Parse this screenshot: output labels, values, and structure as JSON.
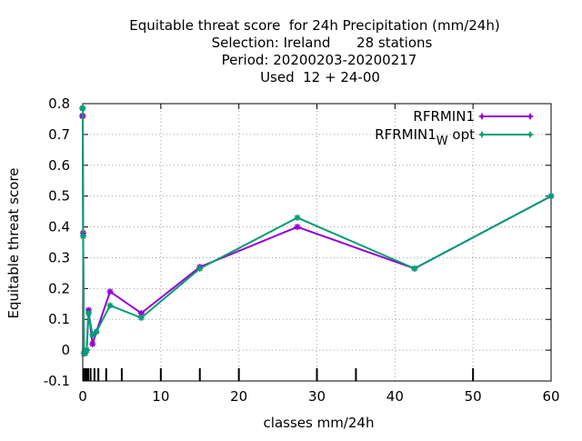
{
  "chart_data": {
    "type": "line",
    "title_lines": [
      "Equitable threat score  for 24h Precipitation (mm/24h)",
      "Selection: Ireland      28 stations",
      "Period: 20200203-20200217",
      "Used  12 + 24-00"
    ],
    "xlabel": "classes mm/24h",
    "ylabel": "Equitable threat score",
    "xlim": [
      0,
      60
    ],
    "ylim": [
      -0.1,
      0.8
    ],
    "xticks": [
      0,
      10,
      20,
      30,
      40,
      50,
      60
    ],
    "yticks": [
      -0.1,
      0,
      0.1,
      0.2,
      0.3,
      0.4,
      0.5,
      0.6,
      0.7,
      0.8
    ],
    "ytick_labels": [
      "-0.1",
      "0",
      "0.1",
      "0.2",
      "0.3",
      "0.4",
      "0.5",
      "0.6",
      "0.7",
      "0.8"
    ],
    "grid": true,
    "legend_position": "top-right",
    "class_marks": [
      0.1,
      0.3,
      0.5,
      0.7,
      1,
      1.5,
      2,
      3,
      5,
      10,
      15,
      20,
      30,
      35,
      50
    ],
    "series": [
      {
        "name": "RFRMIN1",
        "color": "#9400d3",
        "x": [
          -0.05,
          0.0,
          0.05,
          0.15,
          0.3,
          0.5,
          0.75,
          1.25,
          1.75,
          3.5,
          7.5,
          15,
          27.5,
          42.5,
          60
        ],
        "y": [
          0.76,
          0.76,
          0.38,
          -0.01,
          -0.01,
          0.0,
          0.13,
          0.02,
          0.06,
          0.19,
          0.12,
          0.27,
          0.4,
          0.265,
          0.5
        ]
      },
      {
        "name_main": "RFRMIN1",
        "name_sub": "W",
        "name_suffix": " opt",
        "color": "#009e73",
        "x": [
          -0.05,
          0.0,
          0.05,
          0.15,
          0.3,
          0.5,
          0.75,
          1.25,
          1.75,
          3.5,
          7.5,
          15,
          27.5,
          42.5,
          60
        ],
        "y": [
          0.785,
          0.785,
          0.37,
          -0.01,
          -0.01,
          0.0,
          0.12,
          0.05,
          0.06,
          0.145,
          0.105,
          0.265,
          0.43,
          0.265,
          0.5
        ]
      }
    ]
  }
}
